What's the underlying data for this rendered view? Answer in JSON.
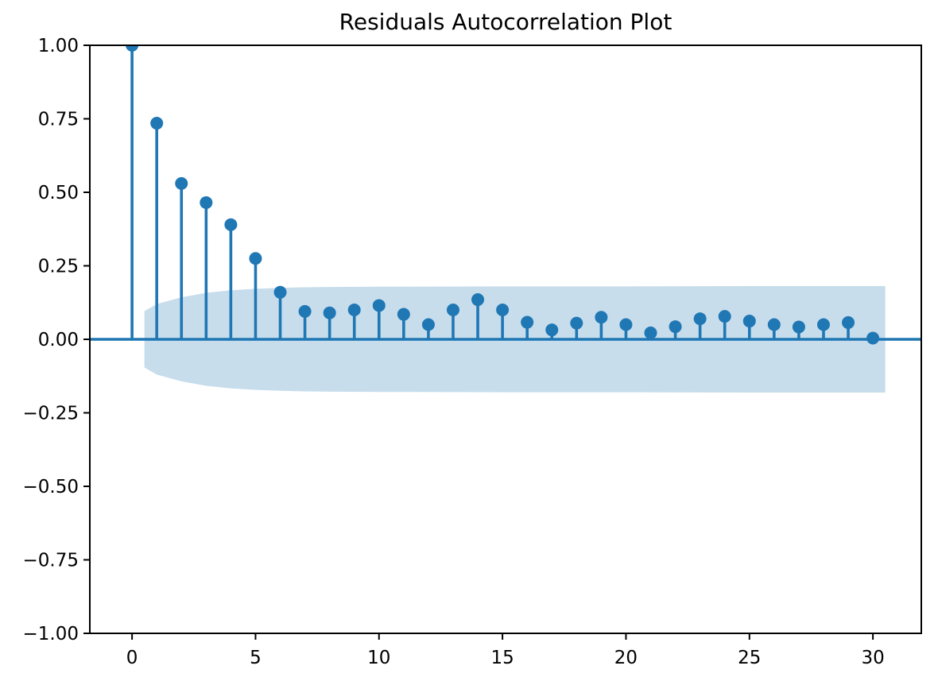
{
  "chart_data": {
    "type": "scatter",
    "variant": "stem-autocorrelation",
    "title": "Residuals Autocorrelation Plot",
    "xlabel": "",
    "ylabel": "",
    "lags": [
      0,
      1,
      2,
      3,
      4,
      5,
      6,
      7,
      8,
      9,
      10,
      11,
      12,
      13,
      14,
      15,
      16,
      17,
      18,
      19,
      20,
      21,
      22,
      23,
      24,
      25,
      26,
      27,
      28,
      29,
      30
    ],
    "acf_values": [
      1.0,
      0.735,
      0.53,
      0.465,
      0.39,
      0.275,
      0.16,
      0.095,
      0.09,
      0.1,
      0.115,
      0.085,
      0.05,
      0.1,
      0.135,
      0.1,
      0.058,
      0.032,
      0.055,
      0.075,
      0.05,
      0.022,
      0.043,
      0.07,
      0.078,
      0.062,
      0.05,
      0.042,
      0.05,
      0.057,
      0.004
    ],
    "confidence_band": {
      "x": [
        0.5,
        1,
        2,
        3,
        4,
        5,
        6,
        7,
        8,
        10,
        15,
        20,
        25,
        30.5
      ],
      "half_width": [
        0.096,
        0.12,
        0.143,
        0.158,
        0.167,
        0.172,
        0.175,
        0.177,
        0.178,
        0.179,
        0.18,
        0.18,
        0.181,
        0.181
      ]
    },
    "baseline_y": 0.0,
    "xlim": [
      -1.71,
      31.96
    ],
    "ylim": [
      -1.0,
      1.0
    ],
    "x_ticks": [
      0,
      5,
      10,
      15,
      20,
      25,
      30
    ],
    "x_tick_labels": [
      "0",
      "5",
      "10",
      "15",
      "20",
      "25",
      "30"
    ],
    "y_ticks": [
      1.0,
      0.75,
      0.5,
      0.25,
      0.0,
      -0.25,
      -0.5,
      -0.75,
      -1.0
    ],
    "y_tick_labels": [
      "1.00",
      "0.75",
      "0.50",
      "0.25",
      "0.00",
      "−0.25",
      "−0.50",
      "−0.75",
      "−1.00"
    ],
    "grid": false,
    "legend": null,
    "colors": {
      "stem": "#1f77b4",
      "marker": "#1f77b4",
      "baseline": "#1f77b4",
      "band": "#c7ddec",
      "spine": "#000000",
      "tick": "#000000",
      "text": "#000000",
      "background": "#ffffff"
    }
  }
}
